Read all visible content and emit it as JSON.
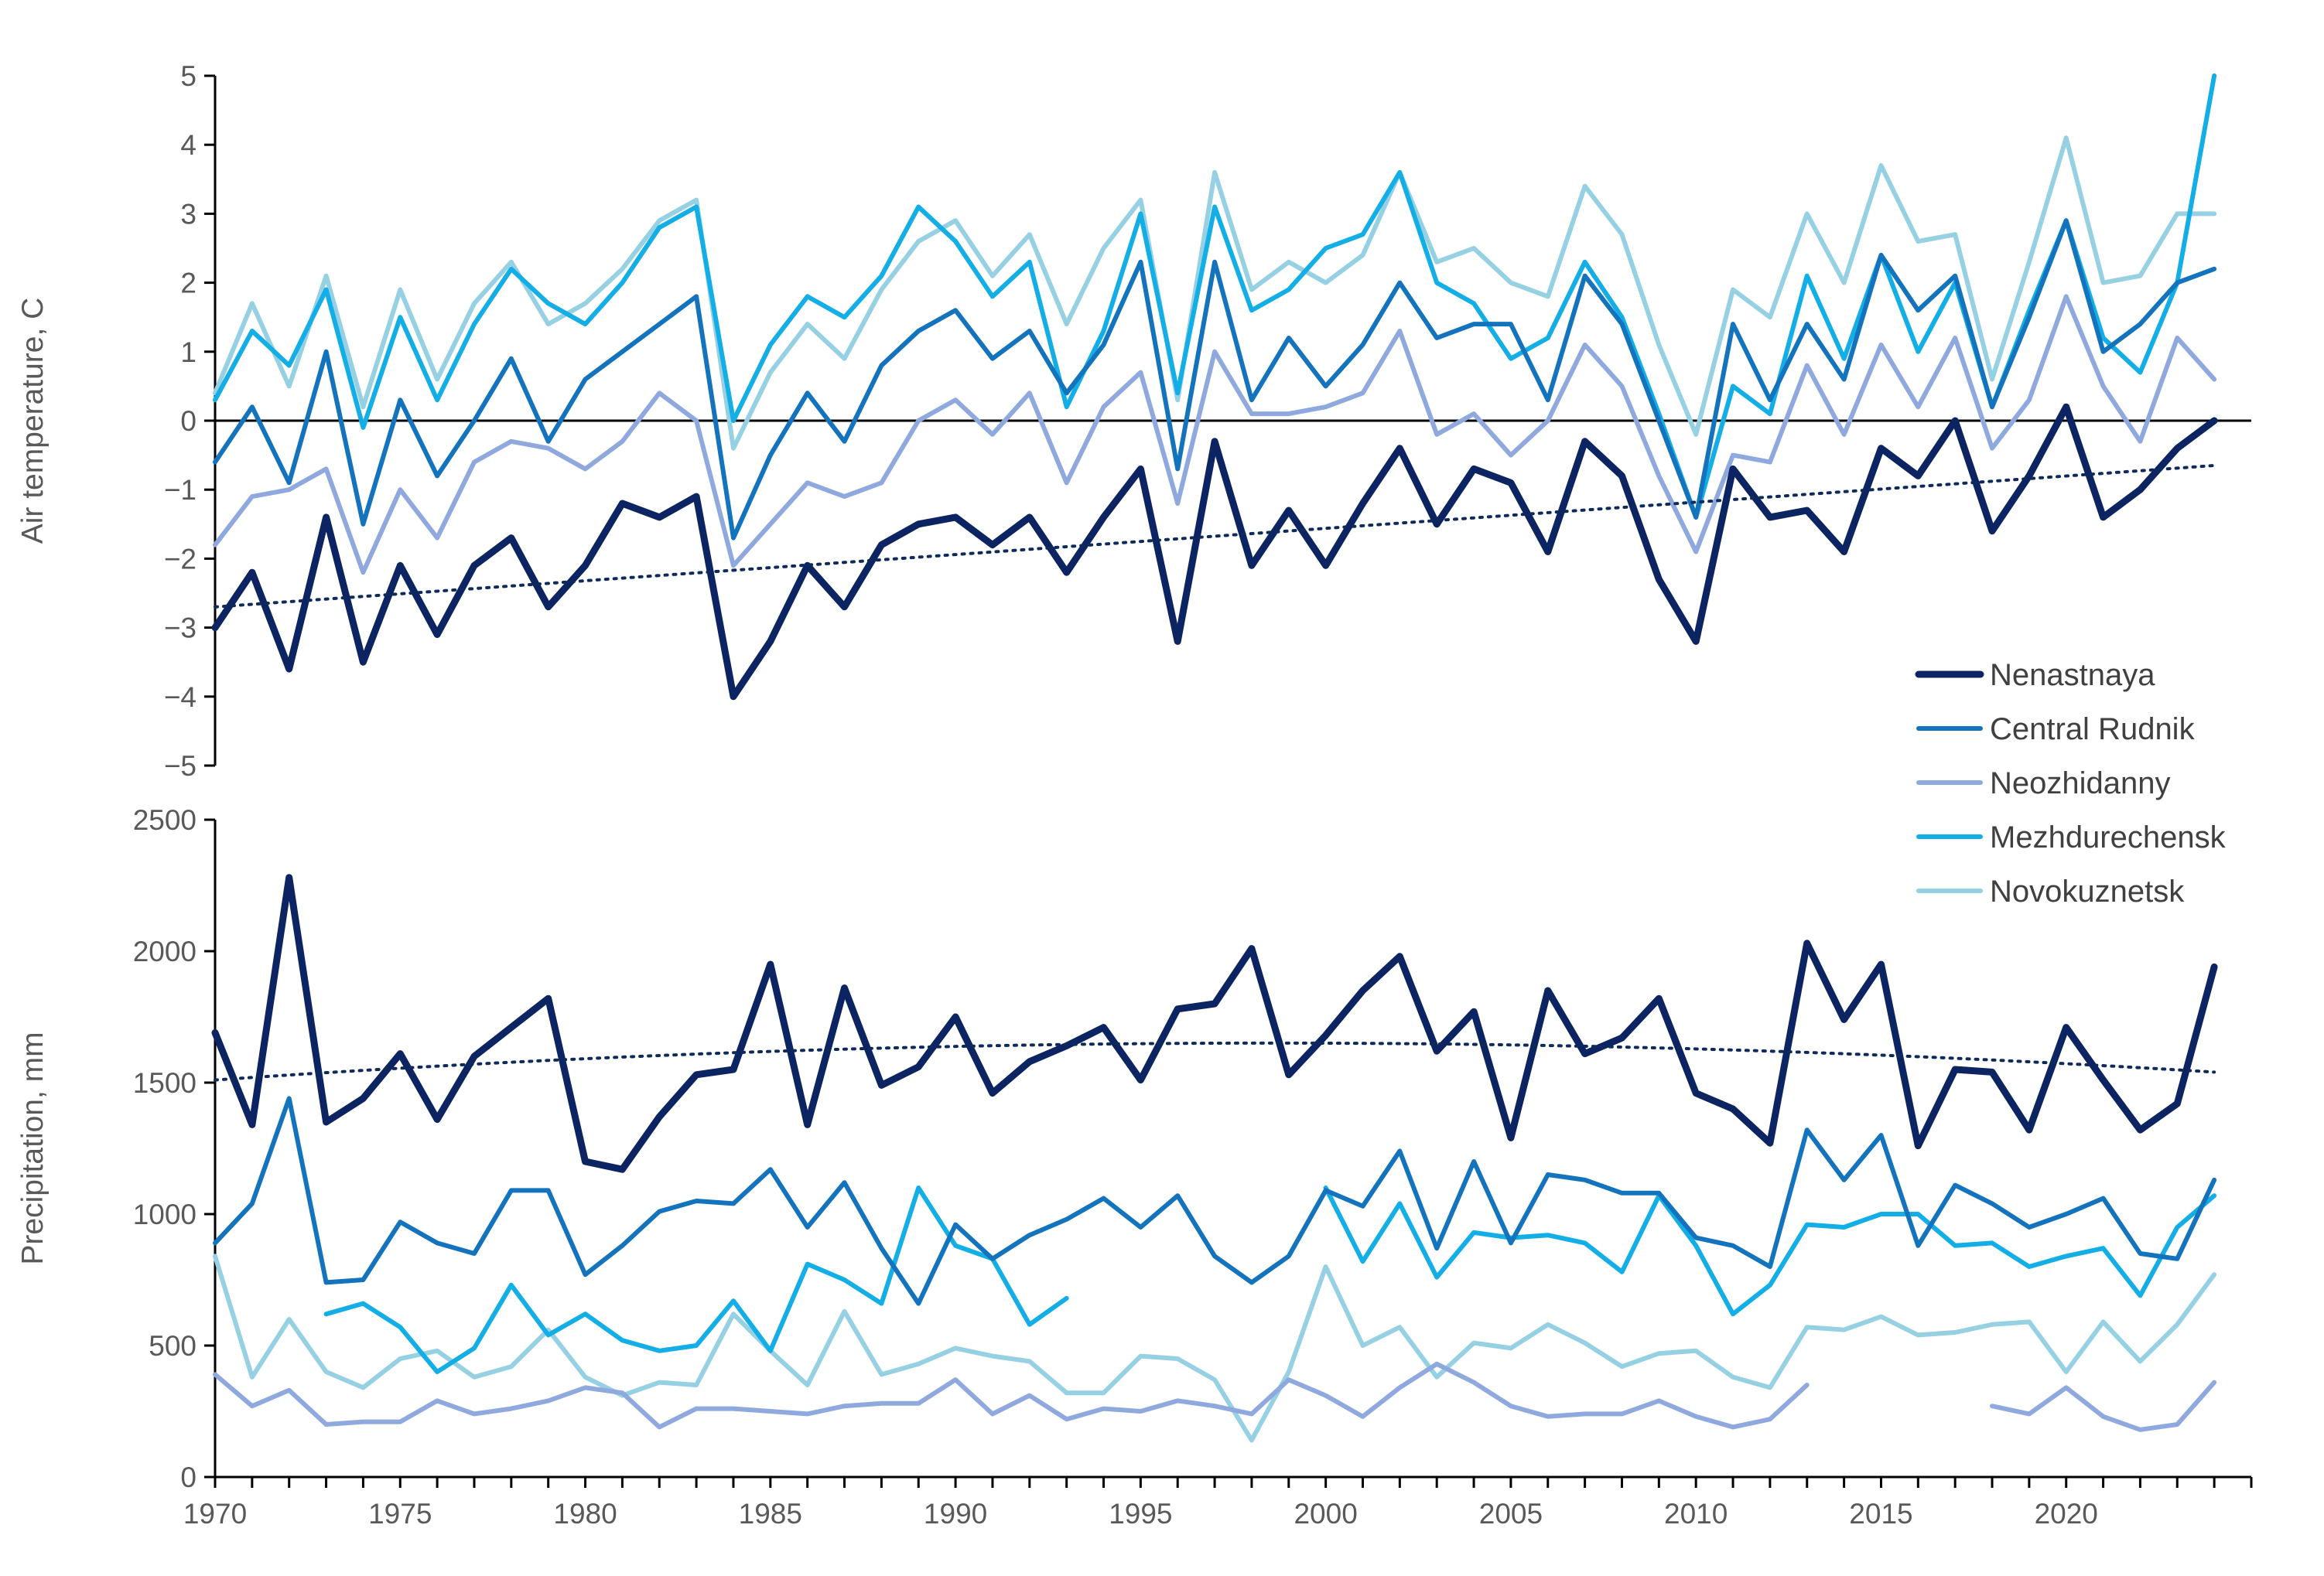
{
  "chart_data": {
    "type": "line",
    "x_labels": [
      "1970",
      "1975",
      "1980",
      "1985",
      "1990",
      "1995",
      "2000",
      "2005",
      "2010",
      "2015",
      "2020"
    ],
    "legend": {
      "placement": "right-middle",
      "entries": [
        "Nenastnaya",
        "Central Rudnik",
        "Neozhidanny",
        "Mezhdurechensk",
        "Novokuznetsk"
      ]
    },
    "series_colors": {
      "Nenastnaya": "#0c2461",
      "Central Rudnik": "#1473bd",
      "Neozhidanny": "#8fa9de",
      "Mezhdurechensk": "#14aee6",
      "Novokuznetsk": "#96d0e3"
    },
    "panels": [
      {
        "id": "temperature",
        "ylabel": "Air temperature, C",
        "ylim": [
          -5,
          5
        ],
        "yticks": [
          -5,
          -4,
          -3,
          -2,
          -1,
          0,
          1,
          2,
          3,
          4,
          5
        ],
        "ytick_labels": [
          "−5",
          "−4",
          "−3",
          "−2",
          "−1",
          "0",
          "1",
          "2",
          "3",
          "4",
          "5"
        ],
        "zero_line": true,
        "x_start": 1970,
        "series": [
          {
            "name": "Nenastnaya",
            "width": 9,
            "values": [
              -3.0,
              -2.2,
              -3.6,
              -1.4,
              -3.5,
              -2.1,
              -3.1,
              -2.1,
              -1.7,
              -2.7,
              -2.1,
              -1.2,
              -1.4,
              -1.1,
              -4.0,
              -3.2,
              -2.1,
              -2.7,
              -1.8,
              -1.5,
              -1.4,
              -1.8,
              -1.4,
              -2.2,
              -1.4,
              -0.7,
              -3.2,
              -0.3,
              -2.1,
              -1.3,
              -2.1,
              -1.2,
              -0.4,
              -1.5,
              -0.7,
              -0.9,
              -1.9,
              -0.3,
              -0.8,
              -2.3,
              -3.2,
              -0.7,
              -1.4,
              -1.3,
              -1.9,
              -0.4,
              -0.8,
              0.0,
              -1.6,
              -0.8,
              0.2,
              -1.4,
              -1.0,
              -0.4,
              0.0
            ]
          },
          {
            "name": "Central Rudnik",
            "width": 6,
            "values": [
              -0.6,
              0.2,
              -0.9,
              1.0,
              -1.5,
              0.3,
              -0.8,
              0.0,
              0.9,
              -0.3,
              0.6,
              1.0,
              1.4,
              1.8,
              -1.7,
              -0.5,
              0.4,
              -0.3,
              0.8,
              1.3,
              1.6,
              0.9,
              1.3,
              0.4,
              1.1,
              2.3,
              -0.7,
              2.3,
              0.3,
              1.2,
              0.5,
              1.1,
              2.0,
              1.2,
              1.4,
              1.4,
              0.3,
              2.1,
              1.4,
              0.0,
              -1.4,
              1.4,
              0.3,
              1.4,
              0.6,
              2.4,
              1.6,
              2.1,
              0.2,
              1.5,
              2.9,
              1.0,
              1.4,
              2.0,
              2.2
            ]
          },
          {
            "name": "Neozhidanny",
            "width": 6,
            "values": [
              -1.8,
              -1.1,
              -1.0,
              -0.7,
              -2.2,
              -1.0,
              -1.7,
              -0.6,
              -0.3,
              -0.4,
              -0.7,
              -0.3,
              0.4,
              0.0,
              -2.1,
              -1.5,
              -0.9,
              -1.1,
              -0.9,
              0.0,
              0.3,
              -0.2,
              0.4,
              -0.9,
              0.2,
              0.7,
              -1.2,
              1.0,
              0.1,
              0.1,
              0.2,
              0.4,
              1.3,
              -0.2,
              0.1,
              -0.5,
              0.0,
              1.1,
              0.5,
              -0.8,
              -1.9,
              -0.5,
              -0.6,
              0.8,
              -0.2,
              1.1,
              0.2,
              1.2,
              -0.4,
              0.3,
              1.8,
              0.5,
              -0.3,
              1.2,
              0.6
            ]
          },
          {
            "name": "Mezhdurechensk",
            "width": 6,
            "values": [
              0.3,
              1.3,
              0.8,
              1.9,
              -0.1,
              1.5,
              0.3,
              1.4,
              2.2,
              1.7,
              1.4,
              2.0,
              2.8,
              3.1,
              0.0,
              1.1,
              1.8,
              1.5,
              2.1,
              3.1,
              2.6,
              1.8,
              2.3,
              0.2,
              1.3,
              3.0,
              0.4,
              3.1,
              1.6,
              1.9,
              2.5,
              2.7,
              3.6,
              2.0,
              1.7,
              0.9,
              1.2,
              2.3,
              1.5,
              0.1,
              -1.4,
              0.5,
              0.1,
              2.1,
              0.9,
              2.4,
              1.0,
              2.0,
              0.2,
              1.6,
              2.9,
              1.2,
              0.7,
              2.0,
              5.0
            ]
          },
          {
            "name": "Novokuznetsk",
            "width": 6,
            "values": [
              0.4,
              1.7,
              0.5,
              2.1,
              0.2,
              1.9,
              0.6,
              1.7,
              2.3,
              1.4,
              1.7,
              2.2,
              2.9,
              3.2,
              -0.4,
              0.7,
              1.4,
              0.9,
              1.9,
              2.6,
              2.9,
              2.1,
              2.7,
              1.4,
              2.5,
              3.2,
              0.3,
              3.6,
              1.9,
              2.3,
              2.0,
              2.4,
              3.6,
              2.3,
              2.5,
              2.0,
              1.8,
              3.4,
              2.7,
              1.1,
              -0.2,
              1.9,
              1.5,
              3.0,
              2.0,
              3.7,
              2.6,
              2.7,
              0.6,
              2.3,
              4.1,
              2.0,
              2.1,
              3.0,
              3.0
            ]
          }
        ],
        "trend": {
          "series": "Nenastnaya",
          "style": "dotted",
          "from": [
            1970,
            -2.7
          ],
          "to": [
            2024,
            -0.65
          ]
        }
      },
      {
        "id": "precipitation",
        "ylabel": "Precipitation, mm",
        "ylim": [
          0,
          2500
        ],
        "yticks": [
          0,
          500,
          1000,
          1500,
          2000,
          2500
        ],
        "ytick_labels": [
          "0",
          "500",
          "1000",
          "1500",
          "2000",
          "2500"
        ],
        "zero_line": false,
        "x_start": 1970,
        "series": [
          {
            "name": "Nenastnaya",
            "width": 9,
            "values": [
              1690,
              1340,
              2280,
              1350,
              1440,
              1610,
              1360,
              1600,
              1710,
              1820,
              1200,
              1170,
              1370,
              1530,
              1550,
              1950,
              1340,
              1860,
              1490,
              1560,
              1750,
              1460,
              1580,
              1640,
              1710,
              1510,
              1780,
              1800,
              2010,
              1530,
              1680,
              1850,
              1980,
              1620,
              1770,
              1290,
              1850,
              1610,
              1670,
              1820,
              1460,
              1400,
              1270,
              2030,
              1740,
              1950,
              1260,
              1550,
              1540,
              1320,
              1710,
              1510,
              1320,
              1420,
              1940
            ]
          },
          {
            "name": "Central Rudnik",
            "width": 6,
            "values": [
              890,
              1040,
              1440,
              740,
              750,
              970,
              890,
              850,
              1090,
              1090,
              770,
              880,
              1010,
              1050,
              1040,
              1170,
              950,
              1120,
              870,
              660,
              960,
              830,
              920,
              980,
              1060,
              950,
              1070,
              840,
              740,
              840,
              1090,
              1030,
              1240,
              870,
              1200,
              890,
              1150,
              1130,
              1080,
              1080,
              910,
              880,
              800,
              1320,
              1130,
              1300,
              880,
              1110,
              1040,
              950,
              1000,
              1060,
              850,
              830,
              1130
            ]
          },
          {
            "name": "Neozhidanny",
            "width": 6,
            "values": [
              390,
              270,
              330,
              200,
              210,
              210,
              290,
              240,
              260,
              290,
              340,
              320,
              190,
              260,
              260,
              250,
              240,
              270,
              280,
              280,
              370,
              240,
              310,
              220,
              260,
              250,
              290,
              270,
              240,
              370,
              310,
              230,
              340,
              430,
              360,
              270,
              230,
              240,
              240,
              290,
              230,
              190,
              220,
              350,
              null,
              null,
              null,
              null,
              270,
              240,
              340,
              230,
              180,
              200,
              360
            ]
          },
          {
            "name": "Mezhdurechensk",
            "width": 6,
            "values": [
              null,
              null,
              null,
              620,
              660,
              570,
              400,
              490,
              730,
              540,
              620,
              520,
              480,
              500,
              670,
              480,
              810,
              750,
              660,
              1100,
              880,
              830,
              580,
              680,
              null,
              null,
              null,
              null,
              null,
              null,
              1100,
              820,
              1040,
              760,
              930,
              910,
              920,
              890,
              780,
              1070,
              880,
              620,
              730,
              960,
              950,
              1000,
              1000,
              880,
              890,
              800,
              840,
              870,
              690,
              950,
              1070
            ]
          },
          {
            "name": "Novokuznetsk",
            "width": 6,
            "values": [
              840,
              380,
              600,
              400,
              340,
              450,
              480,
              380,
              420,
              560,
              380,
              310,
              360,
              350,
              620,
              480,
              350,
              630,
              390,
              430,
              490,
              460,
              440,
              320,
              320,
              460,
              450,
              370,
              140,
              400,
              800,
              500,
              570,
              380,
              510,
              490,
              580,
              510,
              420,
              470,
              480,
              380,
              340,
              570,
              560,
              610,
              540,
              550,
              580,
              590,
              400,
              590,
              440,
              580,
              770
            ]
          }
        ],
        "trend": {
          "series": "Nenastnaya",
          "style": "dotted",
          "from": [
            1970,
            1510
          ],
          "mid": [
            1997,
            1650
          ],
          "to": [
            2024,
            1540
          ]
        }
      }
    ]
  }
}
